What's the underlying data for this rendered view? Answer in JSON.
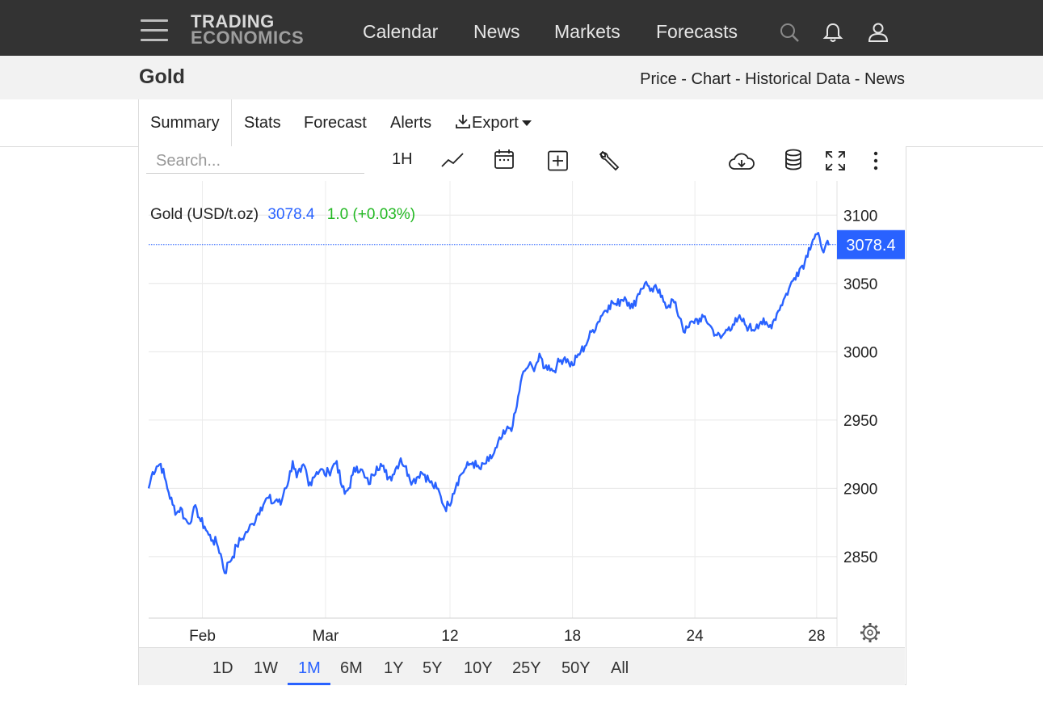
{
  "header": {
    "logo_line1": "TRADING",
    "logo_line2": "ECONOMICS",
    "nav": [
      "Calendar",
      "News",
      "Markets",
      "Forecasts"
    ],
    "icons": [
      "search-icon",
      "bell-icon",
      "user-icon"
    ]
  },
  "subheader": {
    "title": "Gold",
    "links": "Price - Chart - Historical Data - News"
  },
  "tabs": {
    "summary": "Summary",
    "stats": "Stats",
    "forecast": "Forecast",
    "alerts": "Alerts",
    "export": "Export"
  },
  "toolbar": {
    "search_placeholder": "Search...",
    "interval": "1H"
  },
  "quote": {
    "name": "Gold (USD/t.oz)",
    "price": "3078.4",
    "change": "1.0 (+0.03%)",
    "price_color": "#2962ff",
    "change_color": "#22b822"
  },
  "ranges": [
    "1D",
    "1W",
    "1M",
    "6M",
    "1Y",
    "5Y",
    "10Y",
    "25Y",
    "50Y",
    "All"
  ],
  "active_range": "1M",
  "chart_data": {
    "type": "line",
    "series_color": "#2962ff",
    "y_ticks": [
      3100,
      3050,
      3000,
      2950,
      2900,
      2850
    ],
    "ylim": [
      2805,
      3125
    ],
    "last_value_label": "3078.4",
    "last_value": 3078.4,
    "x_tick_labels": [
      "Feb",
      "Mar",
      "12",
      "18",
      "24",
      "28"
    ],
    "x_tick_pos": [
      0.079,
      0.26,
      0.443,
      0.623,
      0.803,
      0.982
    ],
    "grid": true,
    "values": [
      2900,
      2912,
      2916,
      2918,
      2908,
      2897,
      2888,
      2882,
      2886,
      2878,
      2874,
      2882,
      2885,
      2876,
      2872,
      2866,
      2862,
      2860,
      2852,
      2838,
      2846,
      2850,
      2858,
      2862,
      2866,
      2870,
      2874,
      2880,
      2886,
      2890,
      2893,
      2889,
      2892,
      2888,
      2900,
      2906,
      2920,
      2908,
      2912,
      2916,
      2902,
      2908,
      2912,
      2914,
      2910,
      2912,
      2916,
      2920,
      2904,
      2896,
      2900,
      2910,
      2916,
      2914,
      2908,
      2903,
      2910,
      2916,
      2918,
      2912,
      2908,
      2910,
      2916,
      2922,
      2916,
      2910,
      2905,
      2908,
      2912,
      2910,
      2906,
      2902,
      2900,
      2894,
      2886,
      2888,
      2896,
      2904,
      2910,
      2914,
      2917,
      2919,
      2916,
      2914,
      2918,
      2920,
      2924,
      2930,
      2936,
      2940,
      2944,
      2946,
      2960,
      2978,
      2986,
      2990,
      2988,
      2992,
      2996,
      2988,
      2990,
      2986,
      2990,
      2994,
      2996,
      2992,
      2990,
      2996,
      3000,
      3004,
      3010,
      3016,
      3020,
      3026,
      3030,
      3034,
      3036,
      3034,
      3038,
      3040,
      3036,
      3032,
      3040,
      3046,
      3050,
      3048,
      3044,
      3046,
      3040,
      3036,
      3034,
      3038,
      3030,
      3024,
      3014,
      3018,
      3022,
      3024,
      3022,
      3026,
      3020,
      3016,
      3012,
      3010,
      3014,
      3018,
      3020,
      3022,
      3024,
      3020,
      3018,
      3016,
      3020,
      3022,
      3020,
      3018,
      3022,
      3028,
      3034,
      3040,
      3046,
      3052,
      3058,
      3062,
      3066,
      3076,
      3082,
      3086,
      3078,
      3076,
      3078
    ]
  }
}
